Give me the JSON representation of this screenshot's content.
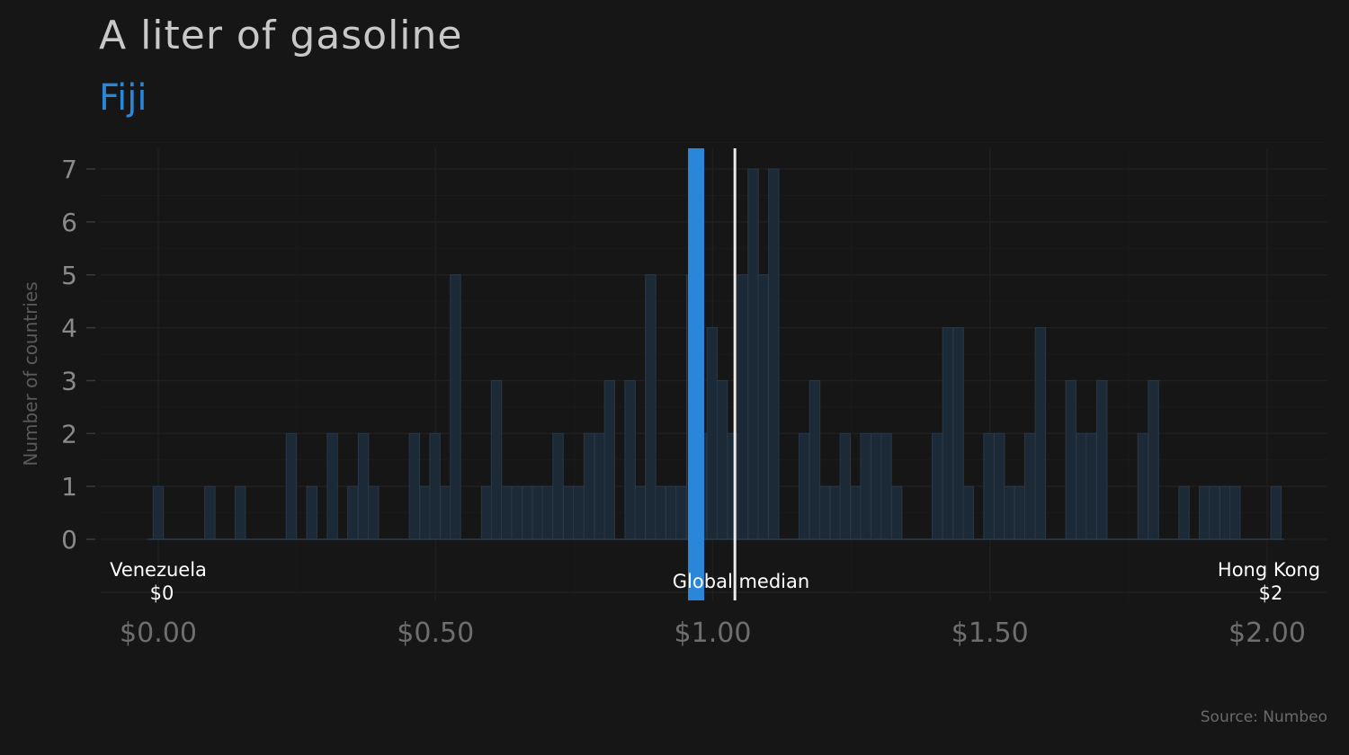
{
  "title": "A liter of gasoline",
  "subtitle": "Fiji",
  "source": "Source: Numbeo",
  "colors": {
    "background": "#161616",
    "highlight": "#2a86d8",
    "bars": "#1c2a38",
    "median": "#ececec"
  },
  "chart_data": {
    "type": "bar",
    "title": "A liter of gasoline",
    "subtitle": "Fiji",
    "ylabel": "Number of countries",
    "xlim": [
      -0.1,
      2.1
    ],
    "ylim": [
      0,
      7.3
    ],
    "xticks": [
      0,
      0.5,
      1,
      1.5,
      2
    ],
    "xtick_labels": [
      "$0.00",
      "$0.50",
      "$1.00",
      "$1.50",
      "$2.00"
    ],
    "yticks": [
      0,
      1,
      2,
      3,
      4,
      5,
      6,
      7
    ],
    "ytick_labels": [
      "0",
      "1",
      "2",
      "3",
      "4",
      "5",
      "6",
      "7"
    ],
    "bin_width": 0.0185,
    "bins": [
      [
        0.0,
        1
      ],
      [
        0.093,
        1
      ],
      [
        0.148,
        1
      ],
      [
        0.24,
        2
      ],
      [
        0.277,
        1
      ],
      [
        0.314,
        2
      ],
      [
        0.351,
        1
      ],
      [
        0.37,
        2
      ],
      [
        0.388,
        1
      ],
      [
        0.462,
        2
      ],
      [
        0.481,
        1
      ],
      [
        0.499,
        2
      ],
      [
        0.518,
        1
      ],
      [
        0.536,
        5
      ],
      [
        0.592,
        1
      ],
      [
        0.61,
        3
      ],
      [
        0.628,
        1
      ],
      [
        0.647,
        1
      ],
      [
        0.666,
        1
      ],
      [
        0.684,
        1
      ],
      [
        0.702,
        1
      ],
      [
        0.721,
        2
      ],
      [
        0.74,
        1
      ],
      [
        0.758,
        1
      ],
      [
        0.777,
        2
      ],
      [
        0.796,
        2
      ],
      [
        0.814,
        3
      ],
      [
        0.851,
        3
      ],
      [
        0.869,
        1
      ],
      [
        0.888,
        5
      ],
      [
        0.906,
        1
      ],
      [
        0.925,
        1
      ],
      [
        0.943,
        1
      ],
      [
        0.962,
        5
      ],
      [
        0.98,
        2
      ],
      [
        0.999,
        4
      ],
      [
        1.017,
        3
      ],
      [
        1.036,
        2
      ],
      [
        1.054,
        5
      ],
      [
        1.073,
        7
      ],
      [
        1.091,
        5
      ],
      [
        1.11,
        7
      ],
      [
        1.165,
        2
      ],
      [
        1.184,
        3
      ],
      [
        1.202,
        1
      ],
      [
        1.221,
        1
      ],
      [
        1.239,
        2
      ],
      [
        1.258,
        1
      ],
      [
        1.276,
        2
      ],
      [
        1.295,
        2
      ],
      [
        1.313,
        2
      ],
      [
        1.332,
        1
      ],
      [
        1.405,
        2
      ],
      [
        1.424,
        4
      ],
      [
        1.443,
        4
      ],
      [
        1.461,
        1
      ],
      [
        1.498,
        2
      ],
      [
        1.517,
        2
      ],
      [
        1.535,
        1
      ],
      [
        1.554,
        1
      ],
      [
        1.572,
        2
      ],
      [
        1.591,
        4
      ],
      [
        1.646,
        3
      ],
      [
        1.665,
        2
      ],
      [
        1.683,
        2
      ],
      [
        1.702,
        3
      ],
      [
        1.776,
        2
      ],
      [
        1.795,
        3
      ],
      [
        1.85,
        1
      ],
      [
        1.887,
        1
      ],
      [
        1.905,
        1
      ],
      [
        1.924,
        1
      ],
      [
        1.942,
        1
      ],
      [
        2.016,
        1
      ]
    ],
    "highlight": {
      "label": "Fiji",
      "value": 0.97
    },
    "median": {
      "label": "Global median",
      "value": 1.04
    },
    "annotations": [
      {
        "name": "Venezuela",
        "value_label": "$0",
        "x": 0
      },
      {
        "name": "Hong Kong",
        "value_label": "$2",
        "x": 2
      }
    ]
  }
}
